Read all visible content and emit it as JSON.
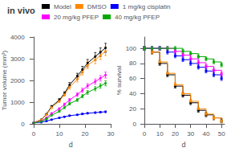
{
  "chart_data": [
    {
      "type": "line",
      "title": "in vivo",
      "x_label": "d",
      "y_label": "Tumor volume (mm³)",
      "x": [
        0,
        3,
        5,
        7,
        10,
        12,
        14,
        17,
        19,
        21,
        24,
        26,
        28
      ],
      "xlim": [
        -1,
        30
      ],
      "xticks": [
        0,
        10,
        20,
        30
      ],
      "ylim": [
        0,
        4000
      ],
      "yticks": [
        0,
        1000,
        2000,
        3000,
        4000
      ],
      "marker": "circle",
      "grid": false,
      "series": [
        {
          "name": "Model",
          "color": "#000000",
          "values": [
            50,
            200,
            450,
            800,
            1100,
            1400,
            1800,
            2200,
            2500,
            2800,
            3100,
            3300,
            3500
          ],
          "errors": [
            3,
            12,
            27,
            48,
            66,
            84,
            108,
            132,
            150,
            168,
            186,
            198,
            210
          ]
        },
        {
          "name": "DMSO",
          "color": "#ff8800",
          "values": [
            50,
            190,
            430,
            760,
            1050,
            1350,
            1700,
            2050,
            2400,
            2700,
            2950,
            3150,
            3350
          ],
          "errors": [
            3,
            11.4,
            25.8,
            45.6,
            63,
            81,
            102,
            123,
            144,
            162,
            177,
            189,
            201
          ]
        },
        {
          "name": "1 mg/kg cisplatin",
          "color": "#0000ff",
          "values": [
            50,
            80,
            130,
            200,
            280,
            330,
            380,
            420,
            460,
            490,
            520,
            540,
            560
          ],
          "errors": [
            3,
            4.8,
            7.8,
            12,
            16.8,
            19.8,
            22.8,
            25.2,
            27.6,
            29.4,
            31.2,
            32.4,
            33.6
          ]
        },
        {
          "name": "20 mg/kg PFEP",
          "color": "#ff00ff",
          "values": [
            50,
            130,
            280,
            480,
            700,
            900,
            1100,
            1350,
            1550,
            1750,
            1950,
            2100,
            2250
          ],
          "errors": [
            3,
            7.8,
            16.8,
            28.8,
            42,
            54,
            66,
            81,
            93,
            105,
            117,
            126,
            135
          ]
        },
        {
          "name": "40 mg/kg PFEP",
          "color": "#00aa00",
          "values": [
            50,
            110,
            230,
            400,
            580,
            750,
            930,
            1100,
            1280,
            1450,
            1620,
            1750,
            1870
          ],
          "errors": [
            3,
            6.6,
            13.8,
            24,
            34.8,
            45,
            55.8,
            66,
            76.8,
            87,
            97.2,
            105,
            112.2
          ]
        }
      ]
    },
    {
      "type": "line",
      "line_style": "step",
      "x_label": "d",
      "y_label": "% survival",
      "x": [
        0,
        5,
        10,
        15,
        20,
        25,
        30,
        35,
        40,
        45,
        50
      ],
      "xlim": [
        -1,
        52
      ],
      "xticks": [
        0,
        10,
        20,
        30,
        40,
        50
      ],
      "ylim": [
        0,
        115
      ],
      "yticks": [
        0,
        20,
        40,
        60,
        80,
        100
      ],
      "marker": "square",
      "grid": false,
      "legend": "top",
      "series": [
        {
          "name": "Model",
          "color": "#000000",
          "values": [
            100,
            95,
            80,
            65,
            50,
            38,
            28,
            18,
            12,
            8,
            4
          ],
          "errors": [
            2.5,
            2.5,
            2.5,
            2.5,
            2.5,
            2.5,
            2.5,
            2.5,
            2.5,
            2.5,
            2.5
          ]
        },
        {
          "name": "DMSO",
          "color": "#ff8800",
          "values": [
            100,
            95,
            82,
            67,
            52,
            40,
            30,
            20,
            13,
            8,
            4
          ],
          "errors": [
            2.5,
            2.5,
            2.5,
            2.5,
            2.5,
            2.5,
            2.5,
            2.5,
            2.5,
            2.5,
            2.5
          ]
        },
        {
          "name": "1 mg/kg cisplatin",
          "color": "#0000ff",
          "values": [
            100,
            100,
            100,
            95,
            90,
            85,
            80,
            75,
            70,
            65,
            60
          ],
          "errors": [
            2.5,
            2.5,
            2.5,
            2.5,
            2.5,
            2.5,
            2.5,
            2.5,
            2.5,
            2.5,
            2.5
          ]
        },
        {
          "name": "20 mg/kg PFEP",
          "color": "#ff00ff",
          "values": [
            100,
            100,
            100,
            100,
            96,
            91,
            86,
            81,
            76,
            71,
            66
          ],
          "errors": [
            2.5,
            2.5,
            2.5,
            2.5,
            2.5,
            2.5,
            2.5,
            2.5,
            2.5,
            2.5,
            2.5
          ]
        },
        {
          "name": "40 mg/kg PFEP",
          "color": "#00aa00",
          "values": [
            100,
            100,
            100,
            100,
            100,
            96,
            93,
            89,
            86,
            82,
            78
          ],
          "errors": [
            2.5,
            2.5,
            2.5,
            2.5,
            2.5,
            2.5,
            2.5,
            2.5,
            2.5,
            2.5,
            2.5
          ]
        }
      ]
    }
  ]
}
